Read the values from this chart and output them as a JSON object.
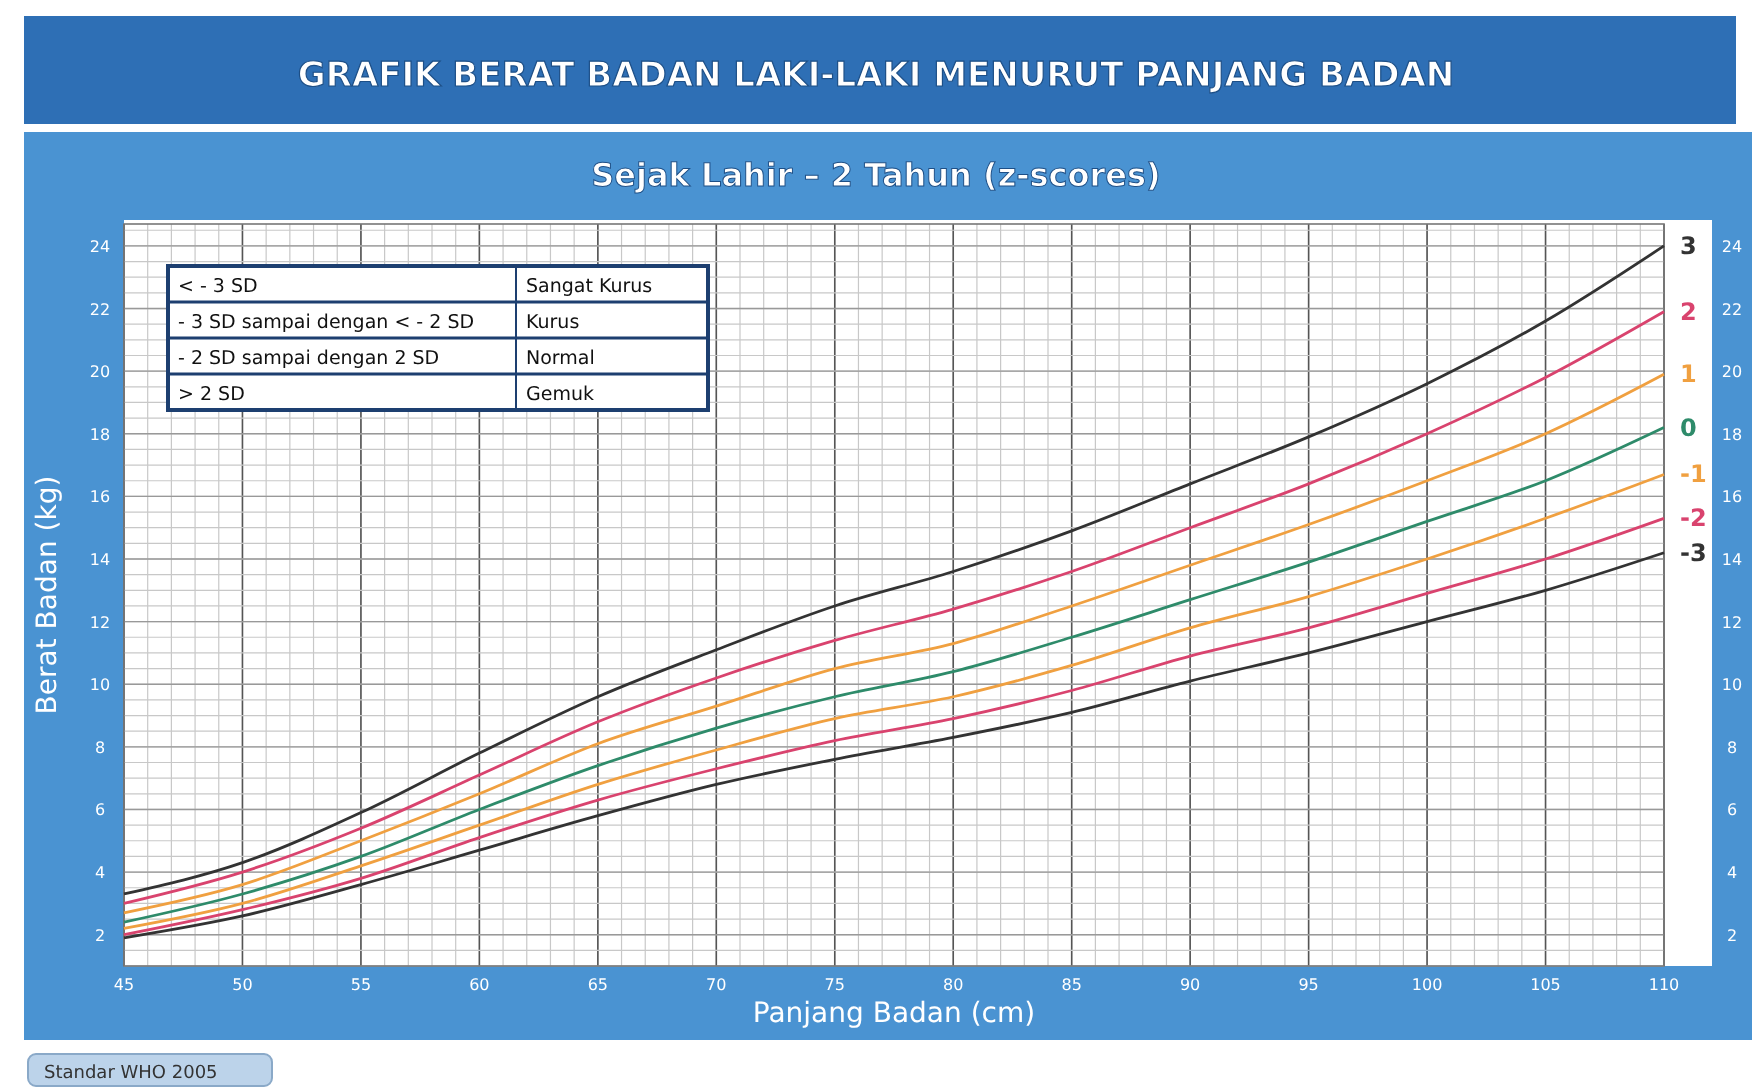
{
  "chart_data": {
    "type": "line",
    "title": "GRAFIK BERAT BADAN LAKI-LAKI MENURUT PANJANG BADAN",
    "subtitle": "Sejak Lahir – 2 Tahun (z-scores)",
    "xlabel": "Panjang Badan (cm)",
    "ylabel": "Berat Badan (kg)",
    "x": [
      45,
      50,
      55,
      60,
      65,
      70,
      75,
      80,
      85,
      90,
      95,
      100,
      105,
      110
    ],
    "xlim": [
      45,
      110
    ],
    "xticks": [
      45,
      50,
      55,
      60,
      65,
      70,
      75,
      80,
      85,
      90,
      95,
      100,
      105,
      110
    ],
    "ylim": [
      1,
      24.7
    ],
    "yticks": [
      2,
      4,
      6,
      8,
      10,
      12,
      14,
      16,
      18,
      20,
      22,
      24
    ],
    "y2lim": [
      1,
      24.7
    ],
    "y2ticks": [
      2,
      4,
      6,
      8,
      10,
      12,
      14,
      16,
      18,
      20,
      22,
      24
    ],
    "grid": true,
    "marker": "none",
    "line_style": "solid",
    "series": [
      {
        "name": "3",
        "color": "#333333",
        "values": [
          3.3,
          4.3,
          5.9,
          7.8,
          9.6,
          11.1,
          12.5,
          13.6,
          14.9,
          16.4,
          17.9,
          19.6,
          21.6,
          24.0
        ]
      },
      {
        "name": "2",
        "color": "#d9436e",
        "values": [
          3.0,
          4.0,
          5.4,
          7.1,
          8.8,
          10.2,
          11.4,
          12.4,
          13.6,
          15.0,
          16.4,
          18.0,
          19.8,
          21.9
        ]
      },
      {
        "name": "1",
        "color": "#f0a040",
        "values": [
          2.7,
          3.6,
          5.0,
          6.5,
          8.1,
          9.3,
          10.5,
          11.3,
          12.5,
          13.8,
          15.1,
          16.5,
          18.0,
          19.9
        ]
      },
      {
        "name": "0",
        "color": "#2e8b6a",
        "values": [
          2.4,
          3.3,
          4.5,
          6.0,
          7.4,
          8.6,
          9.6,
          10.4,
          11.5,
          12.7,
          13.9,
          15.2,
          16.5,
          18.2
        ]
      },
      {
        "name": "-1",
        "color": "#f0a040",
        "values": [
          2.2,
          3.0,
          4.2,
          5.5,
          6.8,
          7.9,
          8.9,
          9.6,
          10.6,
          11.8,
          12.8,
          14.0,
          15.3,
          16.7
        ]
      },
      {
        "name": "-2",
        "color": "#d9436e",
        "values": [
          2.0,
          2.8,
          3.8,
          5.1,
          6.3,
          7.3,
          8.2,
          8.9,
          9.8,
          10.9,
          11.8,
          12.9,
          14.0,
          15.3
        ]
      },
      {
        "name": "-3",
        "color": "#333333",
        "values": [
          1.9,
          2.6,
          3.6,
          4.7,
          5.8,
          6.8,
          7.6,
          8.3,
          9.1,
          10.1,
          11.0,
          12.0,
          13.0,
          14.2
        ]
      }
    ],
    "annotations": [
      "< - 3 SD",
      "Sangat Kurus",
      "- 3 SD sampai dengan < - 2 SD",
      "Kurus",
      "- 2 SD sampai dengan 2 SD",
      "Normal",
      "> 2 SD",
      "Gemuk",
      "Standar WHO 2005"
    ]
  }
}
